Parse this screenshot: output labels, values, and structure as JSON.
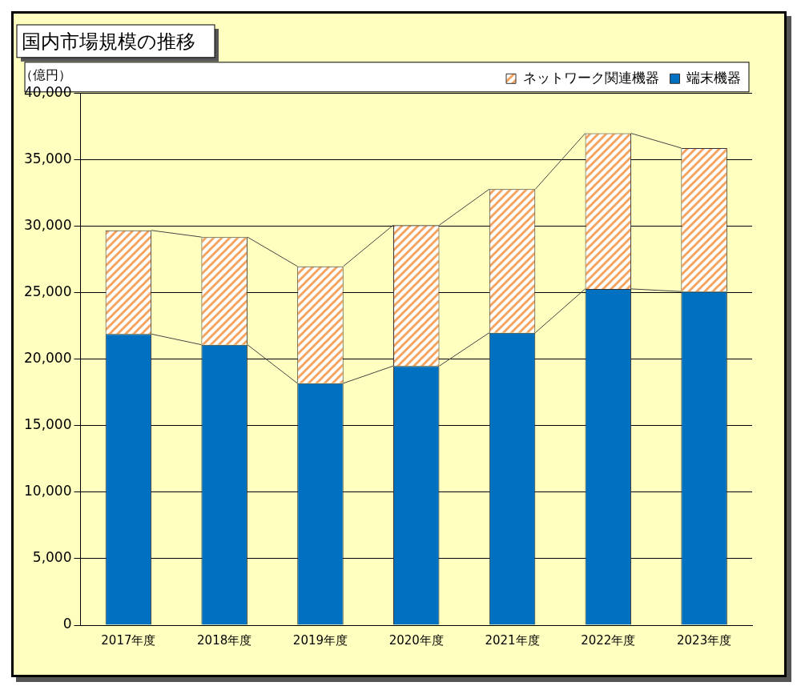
{
  "chart_data": {
    "type": "bar",
    "title": "国内市場規模の推移",
    "ylabel": "（億円）",
    "categories": [
      "2017年度",
      "2018年度",
      "2019年度",
      "2020年度",
      "2021年度",
      "2022年度",
      "2023年度"
    ],
    "series": [
      {
        "name": "端末機器",
        "color": "#0070c0",
        "values": [
          21900,
          21100,
          18200,
          19500,
          22000,
          25300,
          25100
        ]
      },
      {
        "name": "ネットワーク関連機器",
        "color": "#f4a460",
        "values": [
          7800,
          8100,
          8800,
          10600,
          10800,
          11700,
          10800
        ]
      }
    ],
    "stacked": true,
    "ylim": [
      0,
      40000
    ],
    "yticks": [
      0,
      {
        "value": 5000,
        "label": "5,000"
      },
      {
        "value": 10000,
        "label": "10,000"
      },
      {
        "value": 15000,
        "label": "15,000"
      },
      {
        "value": 20000,
        "label": "20,000"
      },
      {
        "value": 25000,
        "label": "25,000"
      },
      {
        "value": 30000,
        "label": "30,000"
      },
      {
        "value": 35000,
        "label": "35,000"
      },
      {
        "value": 40000,
        "label": "40,000"
      }
    ],
    "grid": true,
    "legend": "upper right"
  }
}
